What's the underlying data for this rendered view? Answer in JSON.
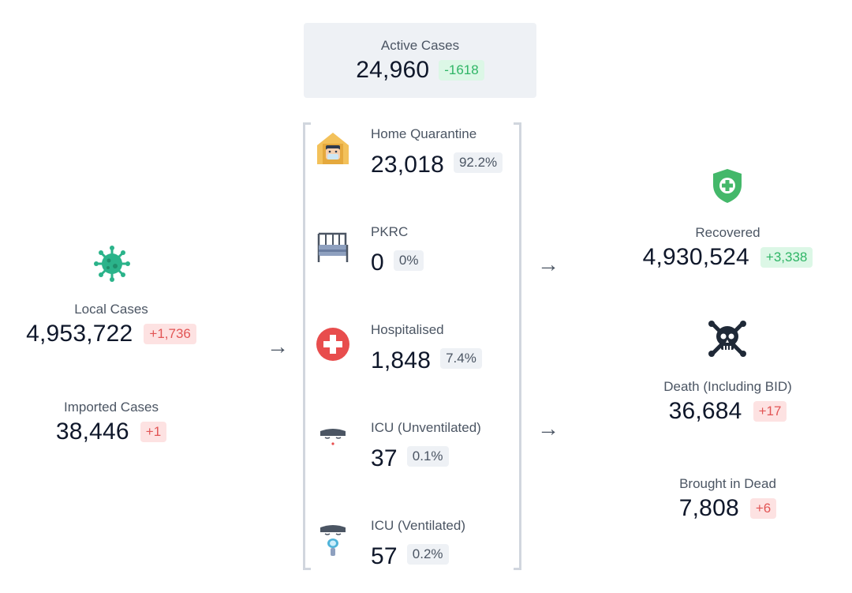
{
  "active": {
    "label": "Active Cases",
    "value": "24,960",
    "change": "-1618"
  },
  "local": {
    "label": "Local Cases",
    "value": "4,953,722",
    "change": "+1,736"
  },
  "imported": {
    "label": "Imported Cases",
    "value": "38,446",
    "change": "+1"
  },
  "arrows": {
    "symbol": "→"
  },
  "hospital_items": [
    {
      "label": "Home Quarantine",
      "value": "23,018",
      "percent": "92.2%",
      "icon": "home-quarantine-icon"
    },
    {
      "label": "PKRC",
      "value": "0",
      "percent": "0%",
      "icon": "bed-icon"
    },
    {
      "label": "Hospitalised",
      "value": "1,848",
      "percent": "7.4%",
      "icon": "hospital-cross-icon"
    },
    {
      "label": "ICU (Unventilated)",
      "value": "37",
      "percent": "0.1%",
      "icon": "icu-patient-icon"
    },
    {
      "label": "ICU (Ventilated)",
      "value": "57",
      "percent": "0.2%",
      "icon": "ventilated-patient-icon"
    }
  ],
  "recovered": {
    "label": "Recovered",
    "value": "4,930,524",
    "change": "+3,338",
    "icon": "shield-plus-icon"
  },
  "death": {
    "label": "Death (Including BID)",
    "value": "36,684",
    "change": "+17",
    "icon": "skull-crossbones-icon"
  },
  "bid": {
    "label": "Brought in Dead",
    "value": "7,808",
    "change": "+6"
  },
  "colors": {
    "red_badge": "#fde2e2",
    "green_badge": "#dcf7e6",
    "gray_badge": "#eef1f5",
    "virus": "#2bb38a",
    "shield": "#44b86a"
  }
}
